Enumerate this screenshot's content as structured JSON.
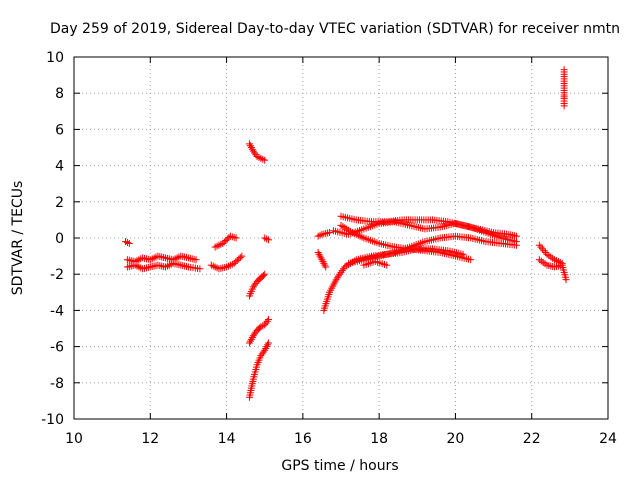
{
  "chart_data": {
    "type": "scatter",
    "title": "Day 259 of 2019, Sidereal Day-to-day VTEC variation (SDTVAR) for receiver nmtn",
    "xlabel": "GPS time / hours",
    "ylabel": "SDTVAR / TECUs",
    "xlim": [
      10,
      24
    ],
    "ylim": [
      -10,
      10
    ],
    "x_ticks": [
      10,
      12,
      14,
      16,
      18,
      20,
      22,
      24
    ],
    "y_ticks": [
      -10,
      -8,
      -6,
      -4,
      -2,
      0,
      2,
      4,
      6,
      8,
      10
    ],
    "grid": true,
    "marker": "+",
    "color": "#ff0000",
    "series": [
      {
        "name": "trace-1",
        "x": [
          11.4,
          11.6,
          11.8,
          12.0,
          12.2,
          12.4,
          12.6,
          12.8,
          13.0,
          13.2
        ],
        "y": [
          -1.2,
          -1.3,
          -1.1,
          -1.2,
          -1.0,
          -1.1,
          -1.2,
          -1.0,
          -1.1,
          -1.2
        ]
      },
      {
        "name": "trace-2",
        "x": [
          11.4,
          11.6,
          11.8,
          12.0,
          12.2,
          12.4,
          12.6,
          12.8,
          13.0,
          13.3
        ],
        "y": [
          -1.6,
          -1.5,
          -1.7,
          -1.6,
          -1.5,
          -1.6,
          -1.4,
          -1.5,
          -1.6,
          -1.7
        ]
      },
      {
        "name": "trace-3",
        "x": [
          11.35,
          11.45
        ],
        "y": [
          -0.2,
          -0.3
        ]
      },
      {
        "name": "trace-4",
        "x": [
          13.6,
          13.8,
          14.0,
          14.2,
          14.4
        ],
        "y": [
          -1.5,
          -1.7,
          -1.6,
          -1.4,
          -1.0
        ]
      },
      {
        "name": "trace-5",
        "x": [
          13.7,
          13.9,
          14.1,
          14.25
        ],
        "y": [
          -0.5,
          -0.3,
          0.1,
          0.0
        ]
      },
      {
        "name": "trace-6",
        "x": [
          14.6,
          14.7,
          14.8,
          14.9,
          15.0
        ],
        "y": [
          5.2,
          4.8,
          4.5,
          4.4,
          4.3
        ]
      },
      {
        "name": "trace-7",
        "x": [
          14.6,
          14.7,
          14.8,
          14.9,
          15.0
        ],
        "y": [
          -3.2,
          -2.7,
          -2.4,
          -2.2,
          -2.0
        ]
      },
      {
        "name": "trace-8",
        "x": [
          14.6,
          14.7,
          14.8,
          14.9,
          15.0,
          15.1
        ],
        "y": [
          -5.8,
          -5.4,
          -5.1,
          -4.9,
          -4.8,
          -4.5
        ]
      },
      {
        "name": "trace-9",
        "x": [
          14.6,
          14.7,
          14.8,
          14.9,
          15.0,
          15.1
        ],
        "y": [
          -8.8,
          -7.8,
          -7.0,
          -6.5,
          -6.2,
          -5.8
        ]
      },
      {
        "name": "trace-10",
        "x": [
          15.0,
          15.1
        ],
        "y": [
          0.0,
          -0.1
        ]
      },
      {
        "name": "trace-11",
        "x": [
          16.4,
          16.5,
          16.6
        ],
        "y": [
          -0.8,
          -1.2,
          -1.6
        ]
      },
      {
        "name": "trace-12",
        "x": [
          16.4,
          16.5,
          16.7
        ],
        "y": [
          0.1,
          0.2,
          0.3
        ]
      },
      {
        "name": "trace-13",
        "x": [
          16.55,
          16.7,
          16.9,
          17.1,
          17.4,
          17.8,
          18.2,
          18.6,
          19.0,
          19.4,
          19.8,
          20.2
        ],
        "y": [
          -4.0,
          -3.0,
          -2.2,
          -1.6,
          -1.2,
          -1.0,
          -0.9,
          -0.8,
          -0.6,
          -0.6,
          -0.7,
          -0.9
        ]
      },
      {
        "name": "trace-14",
        "x": [
          17.0,
          17.3,
          17.6,
          18.0,
          18.4,
          18.8,
          19.2,
          19.6,
          20.0,
          20.4
        ],
        "y": [
          0.7,
          0.3,
          0.0,
          -0.3,
          -0.5,
          -0.6,
          -0.7,
          -0.8,
          -1.0,
          -1.2
        ]
      },
      {
        "name": "trace-15",
        "x": [
          17.0,
          17.4,
          17.8,
          18.2,
          18.6,
          19.0,
          19.4,
          19.8,
          20.2,
          20.6,
          21.0,
          21.4,
          21.6
        ],
        "y": [
          1.2,
          1.0,
          0.9,
          0.9,
          1.0,
          1.0,
          1.0,
          0.9,
          0.7,
          0.5,
          0.3,
          0.2,
          0.1
        ]
      },
      {
        "name": "trace-16",
        "x": [
          16.8,
          17.2,
          17.6,
          18.0,
          18.4,
          18.8,
          19.2,
          19.6,
          20.0,
          20.4,
          20.8,
          21.2,
          21.6
        ],
        "y": [
          0.4,
          0.2,
          0.5,
          0.8,
          0.9,
          0.7,
          0.5,
          0.6,
          0.8,
          0.6,
          0.3,
          0.0,
          -0.2
        ]
      },
      {
        "name": "trace-17",
        "x": [
          17.2,
          17.6,
          18.0,
          18.4,
          18.8,
          19.2,
          19.6,
          20.0,
          20.4,
          20.8,
          21.2,
          21.6
        ],
        "y": [
          -1.4,
          -1.2,
          -1.0,
          -0.8,
          -0.5,
          -0.2,
          0.0,
          0.1,
          0.0,
          -0.2,
          -0.3,
          -0.4
        ]
      },
      {
        "name": "trace-18",
        "x": [
          17.6,
          17.9,
          18.2
        ],
        "y": [
          -1.5,
          -1.3,
          -1.5
        ]
      },
      {
        "name": "trace-19",
        "x": [
          22.2,
          22.4,
          22.6,
          22.8
        ],
        "y": [
          -0.4,
          -0.9,
          -1.2,
          -1.4
        ]
      },
      {
        "name": "trace-20",
        "x": [
          22.2,
          22.4,
          22.6,
          22.8,
          22.9
        ],
        "y": [
          -1.2,
          -1.5,
          -1.6,
          -1.5,
          -2.3
        ]
      },
      {
        "name": "trace-21",
        "x": [
          22.85,
          22.85,
          22.85,
          22.85
        ],
        "y": [
          9.3,
          7.9,
          7.7,
          7.3
        ]
      }
    ]
  }
}
